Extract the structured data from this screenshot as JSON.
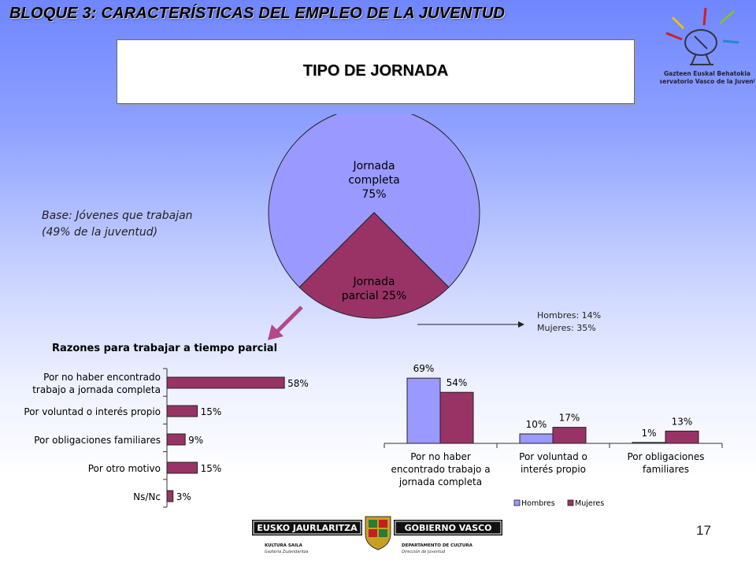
{
  "header": {
    "bloque_title": "BLOQUE 3: CARACTERÍSTICAS DEL EMPLEO DE LA JUVENTUD",
    "topic_title": "TIPO DE JORNADA"
  },
  "logo": {
    "line1": "Gazteen Euskal Behatokia",
    "line2": "Observatorio Vasco de la Juventud",
    "icon": "satellite-dish-icon"
  },
  "notes": {
    "base_line1": "Base: Jóvenes que trabajan",
    "base_line2": "(49% de la juventud)",
    "men": "Hombres: 14%",
    "women": "Mujeres: 35%"
  },
  "page_number": "17",
  "footer": {
    "left_banner": "EUSKO JAURLARITZA",
    "right_banner": "GOBIERNO VASCO",
    "left_dept": "KULTURA SAILA",
    "left_sub": "Gazteria Zuzendaritza",
    "right_dept": "DEPARTAMENTO DE CULTURA",
    "right_sub": "Dirección de Juventud"
  },
  "colors": {
    "full_time": "#9999ff",
    "part_time": "#993366",
    "hombres": "#9999ff",
    "mujeres": "#993366"
  },
  "chart_data": [
    {
      "type": "pie",
      "title": "",
      "slices": [
        {
          "label": "Jornada completa 75%",
          "lines": [
            "Jornada",
            "completa",
            "75%"
          ],
          "value": 75
        },
        {
          "label": "Jornada parcial 25%",
          "lines": [
            "Jornada",
            "parcial 25%"
          ],
          "value": 25
        }
      ]
    },
    {
      "type": "bar",
      "orientation": "horizontal",
      "title": "Razones para trabajar a tiempo parcial",
      "categories": [
        [
          "Por no haber encontrado",
          "trabajo a jornada completa"
        ],
        [
          "Por voluntad o interés propio"
        ],
        [
          "Por obligaciones familiares"
        ],
        [
          "Por otro motivo"
        ],
        [
          "Ns/Nc"
        ]
      ],
      "values": [
        58,
        15,
        9,
        15,
        3
      ],
      "value_labels": [
        "58%",
        "15%",
        "9%",
        "15%",
        "3%"
      ],
      "xlim": [
        0,
        70
      ]
    },
    {
      "type": "bar",
      "orientation": "vertical",
      "categories": [
        [
          "Por no haber",
          "encontrado trabajo a",
          "jornada completa"
        ],
        [
          "Por voluntad o",
          "interés propio"
        ],
        [
          "Por obligaciones",
          "familiares"
        ]
      ],
      "series": [
        {
          "name": "Hombres",
          "values": [
            69,
            10,
            1
          ],
          "labels": [
            "69%",
            "10%",
            "1%"
          ]
        },
        {
          "name": "Mujeres",
          "values": [
            54,
            17,
            13
          ],
          "labels": [
            "54%",
            "17%",
            "13%"
          ]
        }
      ],
      "ylim": [
        0,
        80
      ],
      "legend": "bottom-right"
    }
  ]
}
